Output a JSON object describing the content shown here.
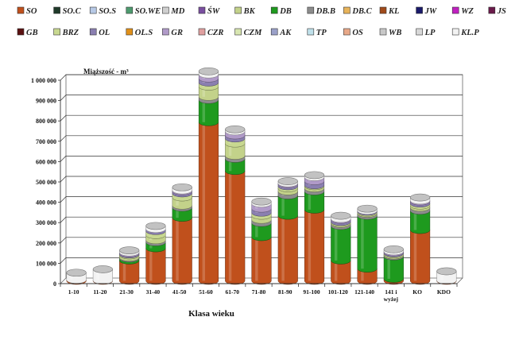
{
  "chart_data": {
    "type": "bar",
    "stacked": true,
    "style": "3d-cylinder",
    "unit_label": "Miąższość - m³",
    "xlabel": "Klasa wieku",
    "ylim": [
      0,
      1000000
    ],
    "y_ticks": [
      "0",
      "100 000",
      "200 000",
      "300 000",
      "400 000",
      "500 000",
      "600 000",
      "700 000",
      "800 000",
      "900 000",
      "1 000 000"
    ],
    "categories": [
      "1-10",
      "11-20",
      "21-30",
      "31-40",
      "41-50",
      "51-60",
      "61-70",
      "71-80",
      "81-90",
      "91-100",
      "101-120",
      "121-140",
      "141 i wyżej",
      "KO",
      "KDO"
    ],
    "legend": {
      "rows": [
        [
          "SO",
          "SO.C",
          "SO.S",
          "SO.WE",
          "MD",
          "ŚW",
          "BK",
          "DB",
          "DB.B",
          "DB.C",
          "KL",
          "JW",
          "WZ",
          "JS"
        ],
        [
          "GB",
          "BRZ",
          "OL",
          "OL.S",
          "GR",
          "CZR",
          "CZM",
          "AK",
          "TP",
          "OS",
          "WB",
          "LP",
          "KL.P"
        ]
      ]
    },
    "series_colors": {
      "SO": "#c0501c",
      "SO.C": "#1f3a2a",
      "SO.S": "#b7c9e6",
      "SO.WE": "#4e9b6f",
      "MD": "#cfcfcf",
      "ŚW": "#7a4fa0",
      "BK": "#c3d28a",
      "DB": "#1e9a1e",
      "DB.B": "#8c8c8c",
      "DB.C": "#e8b45a",
      "KL": "#a04a1a",
      "JW": "#1a1a6a",
      "WZ": "#c020c0",
      "JS": "#6a1a4a",
      "GB": "#5a1010",
      "BRZ": "#c8d890",
      "OL": "#8a7fb0",
      "OL.S": "#e0901a",
      "GR": "#b09ac8",
      "CZR": "#e0a0a0",
      "CZM": "#d8e6b0",
      "AK": "#9aa0c8",
      "TP": "#bfe0ea",
      "OS": "#e8a888",
      "WB": "#c8c8c8",
      "LP": "#d8d8d8",
      "KL.P": "#f2f2f2"
    },
    "series": [
      {
        "name": "SO",
        "values": [
          5000,
          2000,
          100000,
          160000,
          310000,
          780000,
          540000,
          215000,
          320000,
          350000,
          100000,
          60000,
          10000,
          250000,
          2000
        ]
      },
      {
        "name": "DB",
        "values": [
          0,
          0,
          10000,
          30000,
          50000,
          110000,
          60000,
          70000,
          100000,
          90000,
          170000,
          260000,
          110000,
          95000,
          0
        ]
      },
      {
        "name": "DB.B",
        "values": [
          0,
          0,
          5000,
          10000,
          10000,
          15000,
          15000,
          15000,
          20000,
          15000,
          10000,
          10000,
          5000,
          15000,
          0
        ]
      },
      {
        "name": "BK",
        "values": [
          0,
          0,
          10000,
          25000,
          40000,
          50000,
          60000,
          20000,
          15000,
          10000,
          5000,
          5000,
          5000,
          10000,
          0
        ]
      },
      {
        "name": "BRZ",
        "values": [
          0,
          0,
          5000,
          20000,
          20000,
          20000,
          25000,
          15000,
          10000,
          5000,
          5000,
          5000,
          5000,
          10000,
          0
        ]
      },
      {
        "name": "OL",
        "values": [
          0,
          0,
          5000,
          10000,
          10000,
          20000,
          15000,
          20000,
          10000,
          20000,
          10000,
          5000,
          5000,
          10000,
          0
        ]
      },
      {
        "name": "GR",
        "values": [
          0,
          0,
          5000,
          0,
          5000,
          20000,
          20000,
          25000,
          5000,
          20000,
          5000,
          0,
          5000,
          5000,
          0
        ]
      },
      {
        "name": "KL.P",
        "values": [
          35000,
          55000,
          10000,
          15000,
          15000,
          15000,
          10000,
          10000,
          10000,
          10000,
          15000,
          10000,
          10000,
          15000,
          45000
        ]
      }
    ]
  }
}
